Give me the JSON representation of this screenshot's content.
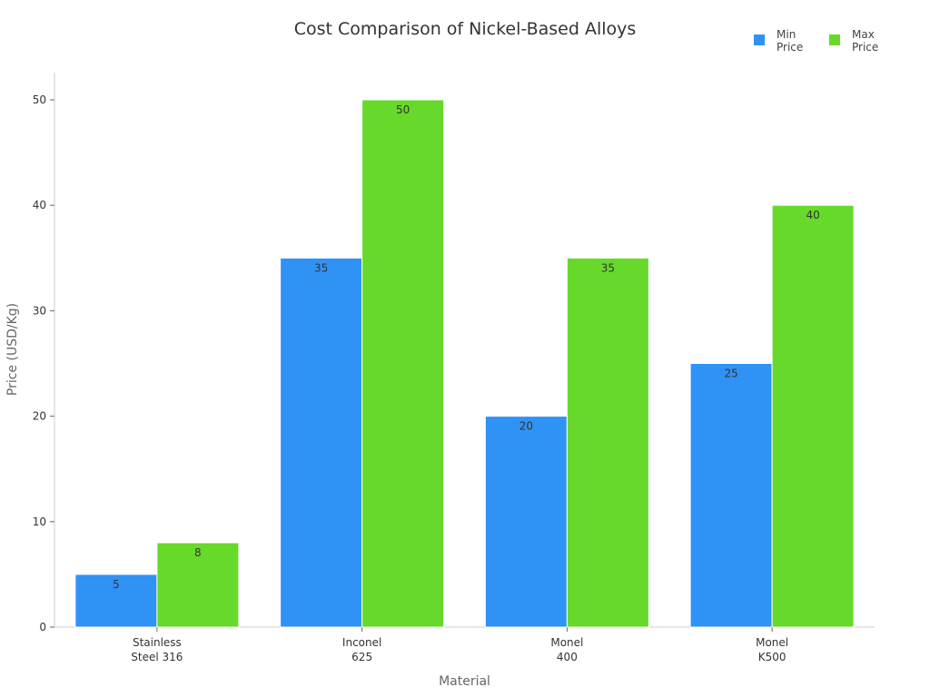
{
  "chart_data": {
    "type": "bar",
    "title": "Cost Comparison of Nickel-Based Alloys",
    "xlabel": "Material",
    "ylabel": "Price (USD/Kg)",
    "categories": [
      [
        "Stainless",
        "Steel 316"
      ],
      [
        "Inconel",
        "625"
      ],
      [
        "Monel",
        "400"
      ],
      [
        "Monel",
        "K500"
      ]
    ],
    "series": [
      {
        "name": "Min Price",
        "name_lines": [
          "Min",
          "Price"
        ],
        "color": "#2f92f5",
        "values": [
          5,
          35,
          20,
          25
        ]
      },
      {
        "name": "Max Price",
        "name_lines": [
          "Max",
          "Price"
        ],
        "color": "#66d92a",
        "values": [
          8,
          50,
          35,
          40
        ]
      }
    ],
    "ylim": [
      0,
      52.5
    ],
    "yticks": [
      0,
      10,
      20,
      30,
      40,
      50
    ],
    "grid": false,
    "legend": "top-right",
    "data_labels": true
  }
}
